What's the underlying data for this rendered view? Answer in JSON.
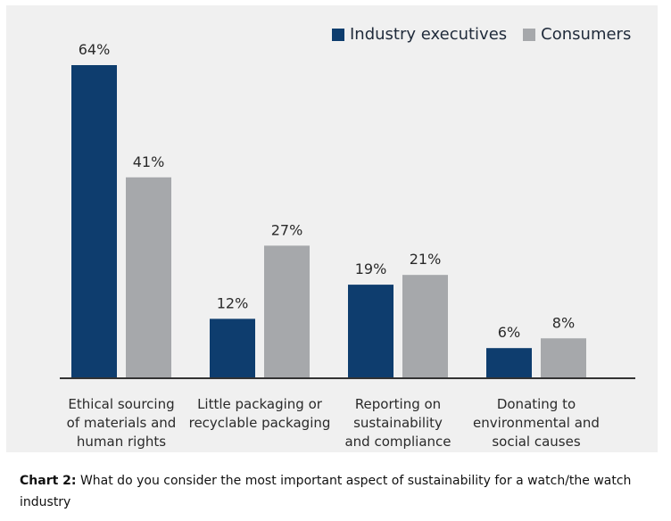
{
  "chart_data": {
    "type": "bar",
    "categories": [
      "Ethical sourcing of materials and human rights",
      "Little packaging or recyclable packaging",
      "Reporting on sustainability and compliance",
      "Donating to environmental and social causes"
    ],
    "category_lines": [
      [
        "Ethical sourcing",
        "of materials and",
        "human rights"
      ],
      [
        "Little packaging or",
        "recyclable packaging"
      ],
      [
        "Reporting on",
        "sustainability",
        "and compliance"
      ],
      [
        "Donating to",
        "environmental and",
        "social causes"
      ]
    ],
    "series": [
      {
        "name": "Industry executives",
        "values": [
          64,
          12,
          19,
          6
        ],
        "labels": [
          "64%",
          "12%",
          "19%",
          "6%"
        ],
        "color": "#0e3d6e"
      },
      {
        "name": "Consumers",
        "values": [
          41,
          27,
          21,
          8
        ],
        "labels": [
          "41%",
          "27%",
          "21%",
          "8%"
        ],
        "color": "#a6a8ab"
      }
    ],
    "ylim": [
      0,
      64
    ],
    "legend_position": "top-right",
    "grid": false
  },
  "caption": {
    "label": "Chart 2:",
    "text": " What do you consider the most important aspect of sustainability for a watch/the watch industry"
  }
}
